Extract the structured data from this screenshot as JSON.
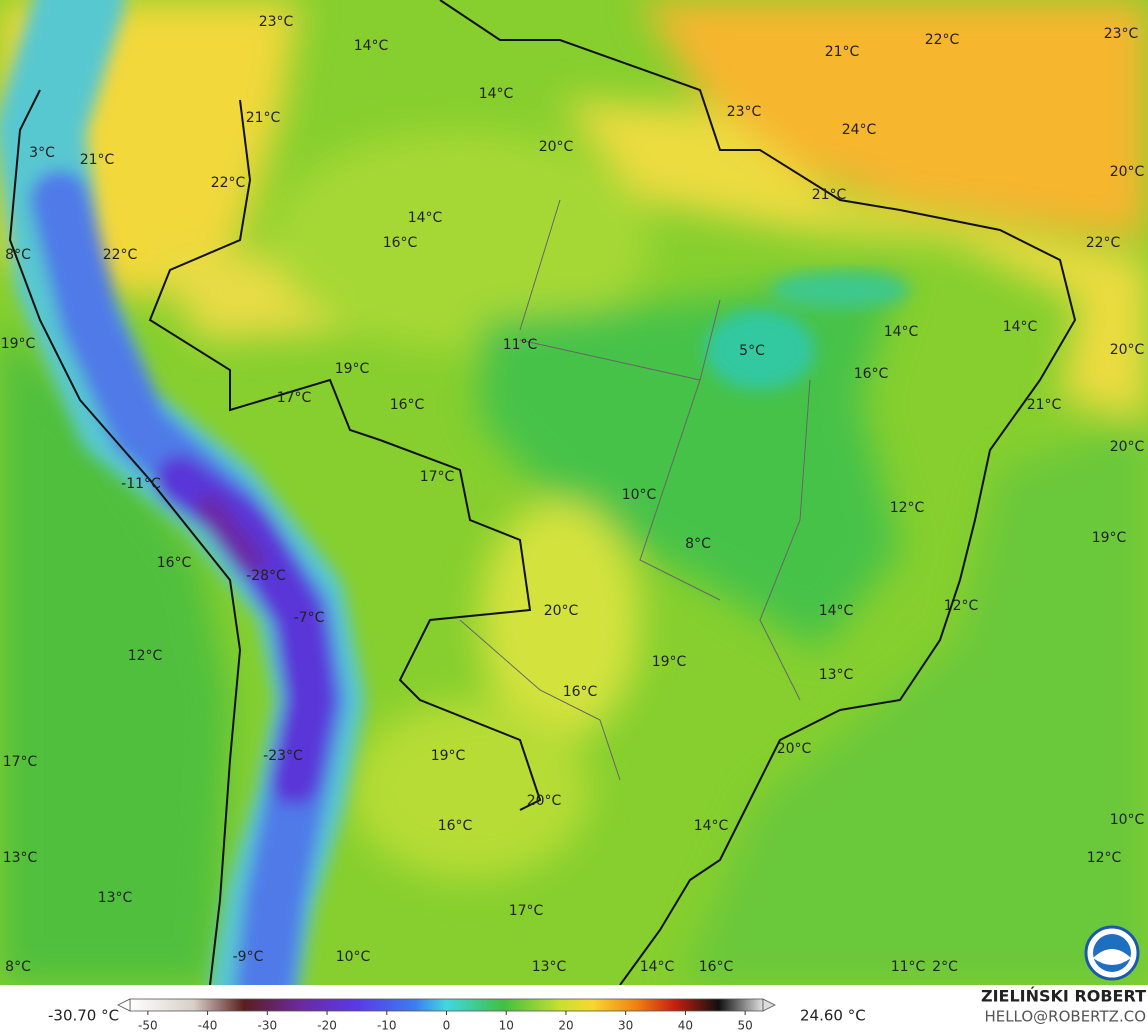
{
  "labels": [
    "23°C",
    "14°C",
    "14°C",
    "21°C",
    "22°C",
    "23°C",
    "21°C",
    "3°C",
    "21°C",
    "20°C",
    "23°C",
    "24°C",
    "22°C",
    "21°C",
    "20°C",
    "14°C",
    "16°C",
    "22°C",
    "8°C",
    "22°C",
    "14°C",
    "14°C",
    "11°C",
    "5°C",
    "19°C",
    "20°C",
    "19°C",
    "16°C",
    "17°C",
    "16°C",
    "21°C",
    "20°C",
    "17°C",
    "-11°C",
    "10°C",
    "12°C",
    "8°C",
    "19°C",
    "16°C",
    "-28°C",
    "20°C",
    "-7°C",
    "14°C",
    "12°C",
    "12°C",
    "19°C",
    "16°C",
    "13°C",
    "20°C",
    "-23°C",
    "19°C",
    "17°C",
    "20°C",
    "16°C",
    "14°C",
    "10°C",
    "13°C",
    "12°C",
    "13°C",
    "17°C",
    "8°C",
    "-9°C",
    "10°C",
    "13°C",
    "14°C",
    "16°C",
    "11°C",
    "2°C"
  ],
  "colorbar": {
    "min_label": "-30.70 °C",
    "max_label": "24.60 °C",
    "lim": [
      -55,
      55
    ],
    "ticks": [
      -50,
      -40,
      -30,
      -20,
      -10,
      0,
      10,
      20,
      30,
      40,
      50
    ]
  },
  "credits": {
    "name": "ZIELIŃSKI ROBERT",
    "contact": "HELLO@ROBERTZ.CO"
  }
}
